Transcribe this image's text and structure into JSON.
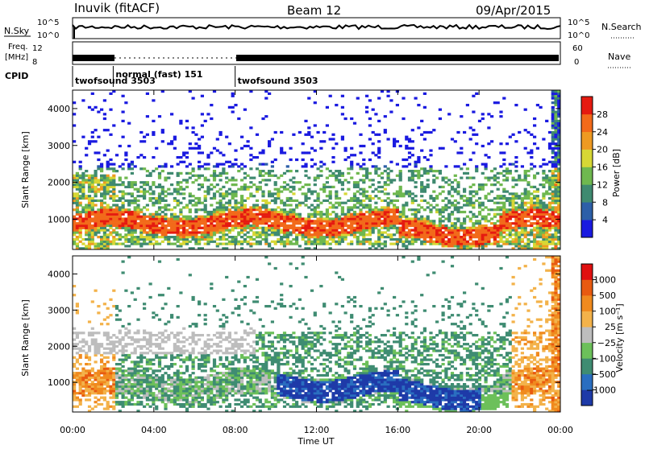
{
  "header": {
    "station": "Inuvik (fitACF)",
    "beam": "Beam 12",
    "date": "09/Apr/2015"
  },
  "aux_panels": {
    "nsky_label": "N.Sky",
    "nsky_ticks": [
      "10^5",
      "10^0"
    ],
    "nsearch_label": "N.Search",
    "nsearch_ticks": [
      "10^5",
      "10^0"
    ],
    "freq_label_1": "Freq.",
    "freq_label_2": "[MHz]",
    "freq_ticks": [
      "12",
      "8"
    ],
    "nave_label": "Nave",
    "nave_ticks": [
      "60",
      "0"
    ],
    "cpid_label": "CPID",
    "cpid_segments": [
      {
        "label": "twofsound 3503",
        "start": 0.0
      },
      {
        "label": "normal (fast) 151",
        "start": 2.0
      },
      {
        "label": "twofsound 3503",
        "start": 8.0
      }
    ]
  },
  "chart_data": [
    {
      "type": "heatmap",
      "name": "power",
      "ylabel": "Slant Range [km]",
      "ylim": [
        180,
        4500
      ],
      "yticks": [
        1000,
        2000,
        3000,
        4000
      ],
      "xlim": [
        0,
        24
      ],
      "xticks": [
        "00:00",
        "04:00",
        "08:00",
        "12:00",
        "16:00",
        "20:00",
        "00:00"
      ],
      "colorbar_label": "Power [dB]",
      "colorbar_ticks": [
        "28",
        "24",
        "20",
        "16",
        "12",
        "8",
        "4"
      ],
      "colors": [
        "#1a1ae0",
        "#2d5fa8",
        "#3f8a70",
        "#6fb84f",
        "#d7d735",
        "#ee9a22",
        "#f26a1a",
        "#e51a10"
      ]
    },
    {
      "type": "heatmap",
      "name": "velocity",
      "ylabel": "Slant Range [km]",
      "ylim": [
        180,
        4500
      ],
      "yticks": [
        1000,
        2000,
        3000,
        4000
      ],
      "xlim": [
        0,
        24
      ],
      "xlabel": "Time UT",
      "xticks": [
        "00:00",
        "04:00",
        "08:00",
        "12:00",
        "16:00",
        "20:00",
        "00:00"
      ],
      "colorbar_label": "Velocity [m s⁻¹]",
      "colorbar_ticks": [
        "1000",
        "500",
        "100",
        "25",
        "−25",
        "−100",
        "−500",
        "−1000"
      ],
      "colors": [
        "#1e3aa8",
        "#2a6ec0",
        "#3f8c72",
        "#6cc05a",
        "#bdbdbd",
        "#f3b24a",
        "#f08a1e",
        "#e85a10",
        "#e01010"
      ]
    }
  ]
}
